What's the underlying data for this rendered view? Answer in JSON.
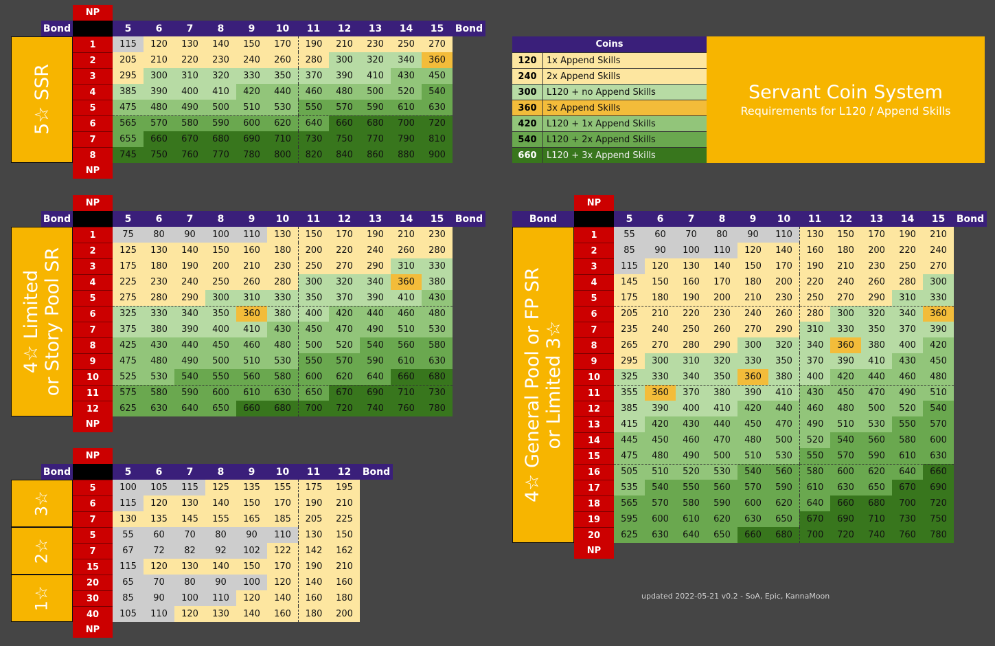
{
  "labels": {
    "np": "NP",
    "bond": "Bond",
    "coins": "Coins"
  },
  "colors": {
    "grey": "#cdcdcd",
    "light_yellow": "#fde6a0",
    "light_green": "#b7dba4",
    "orange": "#f3bc3a",
    "mid_green": "#92c57a",
    "green": "#6aa84f",
    "dark_green": "#38761d"
  },
  "legend": {
    "title": "Servant Coin System",
    "subtitle": "Requirements for L120 / Append Skills",
    "rows": [
      {
        "value": "120",
        "label": "1x Append Skills",
        "color": "light_yellow"
      },
      {
        "value": "240",
        "label": "2x Append Skills",
        "color": "light_yellow"
      },
      {
        "value": "300",
        "label": "L120 + no Append Skills",
        "color": "light_green"
      },
      {
        "value": "360",
        "label": "3x Append Skills",
        "color": "orange"
      },
      {
        "value": "420",
        "label": "L120 + 1x Append Skills",
        "color": "mid_green"
      },
      {
        "value": "540",
        "label": "L120 + 2x Append Skills",
        "color": "green"
      },
      {
        "value": "660",
        "label": "L120 + 3x Append Skills",
        "color": "dark_green"
      }
    ]
  },
  "tables": [
    {
      "id": "ssr5",
      "bonds": [
        "5",
        "6",
        "7",
        "8",
        "9",
        "10",
        "11",
        "12",
        "13",
        "14",
        "15"
      ],
      "groups": [
        {
          "label": "5☆ SSR",
          "rows": [
            {
              "np": "1",
              "values": [
                115,
                120,
                130,
                140,
                150,
                170,
                190,
                210,
                230,
                250,
                270
              ]
            },
            {
              "np": "2",
              "values": [
                205,
                210,
                220,
                230,
                240,
                260,
                280,
                300,
                320,
                340,
                360
              ]
            },
            {
              "np": "3",
              "values": [
                295,
                300,
                310,
                320,
                330,
                350,
                370,
                390,
                410,
                430,
                450
              ]
            },
            {
              "np": "4",
              "values": [
                385,
                390,
                400,
                410,
                420,
                440,
                460,
                480,
                500,
                520,
                540
              ]
            },
            {
              "np": "5",
              "values": [
                475,
                480,
                490,
                500,
                510,
                530,
                550,
                570,
                590,
                610,
                630
              ]
            },
            {
              "np": "6",
              "values": [
                565,
                570,
                580,
                590,
                600,
                620,
                640,
                660,
                680,
                700,
                720
              ]
            },
            {
              "np": "7",
              "values": [
                655,
                660,
                670,
                680,
                690,
                710,
                730,
                750,
                770,
                790,
                810
              ]
            },
            {
              "np": "8",
              "values": [
                745,
                750,
                760,
                770,
                780,
                800,
                820,
                840,
                860,
                880,
                900
              ]
            }
          ]
        }
      ]
    },
    {
      "id": "sr4_limited",
      "bonds": [
        "5",
        "6",
        "7",
        "8",
        "9",
        "10",
        "11",
        "12",
        "13",
        "14",
        "15"
      ],
      "groups": [
        {
          "label": "4☆ Limited\nor Story Pool SR",
          "rows": [
            {
              "np": "1",
              "values": [
                75,
                80,
                90,
                100,
                110,
                130,
                150,
                170,
                190,
                210,
                230
              ]
            },
            {
              "np": "2",
              "values": [
                125,
                130,
                140,
                150,
                160,
                180,
                200,
                220,
                240,
                260,
                280
              ]
            },
            {
              "np": "3",
              "values": [
                175,
                180,
                190,
                200,
                210,
                230,
                250,
                270,
                290,
                310,
                330
              ]
            },
            {
              "np": "4",
              "values": [
                225,
                230,
                240,
                250,
                260,
                280,
                300,
                320,
                340,
                360,
                380
              ]
            },
            {
              "np": "5",
              "values": [
                275,
                280,
                290,
                300,
                310,
                330,
                350,
                370,
                390,
                410,
                430
              ]
            },
            {
              "np": "6",
              "values": [
                325,
                330,
                340,
                350,
                360,
                380,
                400,
                420,
                440,
                460,
                480
              ]
            },
            {
              "np": "7",
              "values": [
                375,
                380,
                390,
                400,
                410,
                430,
                450,
                470,
                490,
                510,
                530
              ]
            },
            {
              "np": "8",
              "values": [
                425,
                430,
                440,
                450,
                460,
                480,
                500,
                520,
                540,
                560,
                580
              ]
            },
            {
              "np": "9",
              "values": [
                475,
                480,
                490,
                500,
                510,
                530,
                550,
                570,
                590,
                610,
                630
              ]
            },
            {
              "np": "10",
              "values": [
                525,
                530,
                540,
                550,
                560,
                580,
                600,
                620,
                640,
                660,
                680
              ]
            },
            {
              "np": "11",
              "values": [
                575,
                580,
                590,
                600,
                610,
                630,
                650,
                670,
                690,
                710,
                730
              ]
            },
            {
              "np": "12",
              "values": [
                625,
                630,
                640,
                650,
                660,
                680,
                700,
                720,
                740,
                760,
                780
              ]
            }
          ]
        }
      ]
    },
    {
      "id": "low",
      "bonds": [
        "5",
        "6",
        "7",
        "8",
        "9",
        "10",
        "11",
        "12"
      ],
      "groups": [
        {
          "label": "3☆",
          "rows": [
            {
              "np": "5",
              "values": [
                100,
                105,
                115,
                125,
                135,
                155,
                175,
                195
              ]
            },
            {
              "np": "6",
              "values": [
                115,
                120,
                130,
                140,
                150,
                170,
                190,
                210
              ]
            },
            {
              "np": "7",
              "values": [
                130,
                135,
                145,
                155,
                165,
                185,
                205,
                225
              ]
            }
          ]
        },
        {
          "label": "2☆",
          "rows": [
            {
              "np": "5",
              "values": [
                55,
                60,
                70,
                80,
                90,
                110,
                130,
                150
              ]
            },
            {
              "np": "7",
              "values": [
                67,
                72,
                82,
                92,
                102,
                122,
                142,
                162
              ]
            },
            {
              "np": "15",
              "values": [
                115,
                120,
                130,
                140,
                150,
                170,
                190,
                210
              ]
            }
          ]
        },
        {
          "label": "1☆",
          "rows": [
            {
              "np": "20",
              "values": [
                65,
                70,
                80,
                90,
                100,
                120,
                140,
                160
              ]
            },
            {
              "np": "30",
              "values": [
                85,
                90,
                100,
                110,
                120,
                140,
                160,
                180
              ]
            },
            {
              "np": "40",
              "values": [
                105,
                110,
                120,
                130,
                140,
                160,
                180,
                200
              ]
            }
          ]
        }
      ]
    },
    {
      "id": "sr4_general",
      "bonds": [
        "5",
        "6",
        "7",
        "8",
        "9",
        "10",
        "11",
        "12",
        "13",
        "14",
        "15"
      ],
      "groups": [
        {
          "label": "4☆ General Pool or FP SR\nor Limited 3☆",
          "rows": [
            {
              "np": "1",
              "values": [
                55,
                60,
                70,
                80,
                90,
                110,
                130,
                150,
                170,
                190,
                210
              ]
            },
            {
              "np": "2",
              "values": [
                85,
                90,
                100,
                110,
                120,
                140,
                160,
                180,
                200,
                220,
                240
              ]
            },
            {
              "np": "3",
              "values": [
                115,
                120,
                130,
                140,
                150,
                170,
                190,
                210,
                230,
                250,
                270
              ]
            },
            {
              "np": "4",
              "values": [
                145,
                150,
                160,
                170,
                180,
                200,
                220,
                240,
                260,
                280,
                300
              ]
            },
            {
              "np": "5",
              "values": [
                175,
                180,
                190,
                200,
                210,
                230,
                250,
                270,
                290,
                310,
                330
              ]
            },
            {
              "np": "6",
              "values": [
                205,
                210,
                220,
                230,
                240,
                260,
                280,
                300,
                320,
                340,
                360
              ]
            },
            {
              "np": "7",
              "values": [
                235,
                240,
                250,
                260,
                270,
                290,
                310,
                330,
                350,
                370,
                390
              ]
            },
            {
              "np": "8",
              "values": [
                265,
                270,
                280,
                290,
                300,
                320,
                340,
                360,
                380,
                400,
                420
              ]
            },
            {
              "np": "9",
              "values": [
                295,
                300,
                310,
                320,
                330,
                350,
                370,
                390,
                410,
                430,
                450
              ]
            },
            {
              "np": "10",
              "values": [
                325,
                330,
                340,
                350,
                360,
                380,
                400,
                420,
                440,
                460,
                480
              ]
            },
            {
              "np": "11",
              "values": [
                355,
                360,
                370,
                380,
                390,
                410,
                430,
                450,
                470,
                490,
                510
              ]
            },
            {
              "np": "12",
              "values": [
                385,
                390,
                400,
                410,
                420,
                440,
                460,
                480,
                500,
                520,
                540
              ]
            },
            {
              "np": "13",
              "values": [
                415,
                420,
                430,
                440,
                450,
                470,
                490,
                510,
                530,
                550,
                570
              ]
            },
            {
              "np": "14",
              "values": [
                445,
                450,
                460,
                470,
                480,
                500,
                520,
                540,
                560,
                580,
                600
              ]
            },
            {
              "np": "15",
              "values": [
                475,
                480,
                490,
                500,
                510,
                530,
                550,
                570,
                590,
                610,
                630
              ]
            },
            {
              "np": "16",
              "values": [
                505,
                510,
                520,
                530,
                540,
                560,
                580,
                600,
                620,
                640,
                660
              ]
            },
            {
              "np": "17",
              "values": [
                535,
                540,
                550,
                560,
                570,
                590,
                610,
                630,
                650,
                670,
                690
              ]
            },
            {
              "np": "18",
              "values": [
                565,
                570,
                580,
                590,
                600,
                620,
                640,
                660,
                680,
                700,
                720
              ]
            },
            {
              "np": "19",
              "values": [
                595,
                600,
                610,
                620,
                630,
                650,
                670,
                690,
                710,
                730,
                750
              ]
            },
            {
              "np": "20",
              "values": [
                625,
                630,
                640,
                650,
                660,
                680,
                700,
                720,
                740,
                760,
                780
              ]
            }
          ]
        }
      ]
    }
  ],
  "footer": "updated 2022-05-21 v0.2 - SoA, Epic, KannaMoon"
}
